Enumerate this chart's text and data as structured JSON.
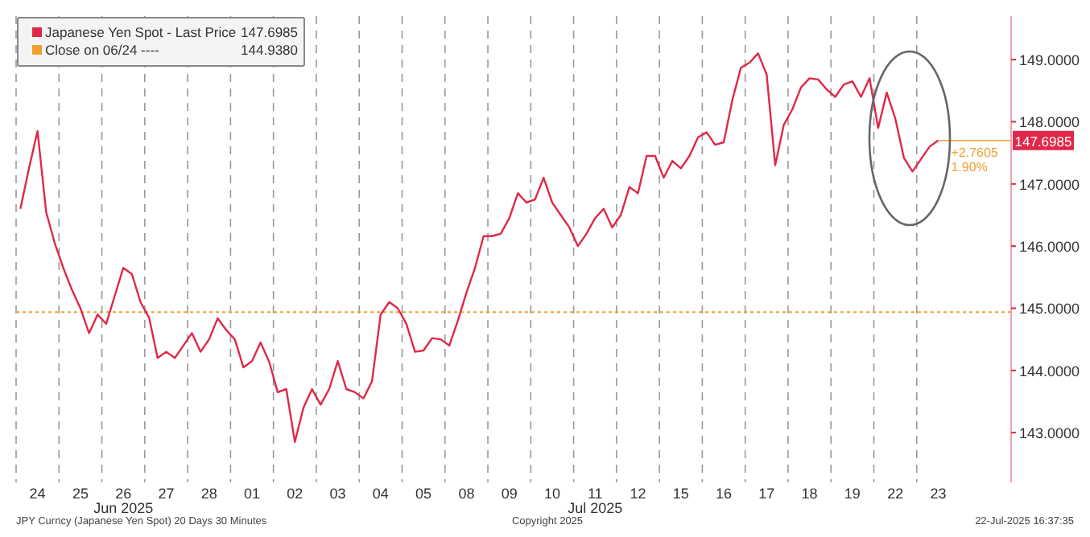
{
  "chart_data": {
    "type": "line",
    "categories": [
      null,
      null,
      "24",
      null,
      null,
      null,
      null,
      "25",
      null,
      null,
      null,
      null,
      "26",
      null,
      null,
      null,
      null,
      "27",
      null,
      null,
      null,
      null,
      "28",
      null,
      null,
      null,
      null,
      "01",
      null,
      null,
      null,
      null,
      "02",
      null,
      null,
      null,
      null,
      "03",
      null,
      null,
      null,
      null,
      "04",
      null,
      null,
      null,
      null,
      "05",
      null,
      null,
      null,
      null,
      "08",
      null,
      null,
      null,
      null,
      "09",
      null,
      null,
      null,
      null,
      "10",
      null,
      null,
      null,
      null,
      "11",
      null,
      null,
      null,
      null,
      "12",
      null,
      null,
      null,
      null,
      "15",
      null,
      null,
      null,
      null,
      "16",
      null,
      null,
      null,
      null,
      "17",
      null,
      null,
      null,
      null,
      "18",
      null,
      null,
      null,
      null,
      "19",
      null,
      null,
      null,
      null,
      "22",
      null,
      null,
      null,
      null,
      "23",
      null,
      null,
      null,
      null,
      null,
      null,
      null,
      null
    ],
    "series": [
      {
        "name": "Japanese Yen Spot - Last Price",
        "color": "#e0284a",
        "values": [
          146.6,
          147.25,
          147.85,
          146.55,
          146.05,
          145.65,
          145.3,
          145.0,
          144.6,
          144.9,
          144.75,
          145.2,
          145.65,
          145.55,
          145.1,
          144.85,
          144.2,
          144.3,
          144.2,
          144.4,
          144.6,
          144.3,
          144.5,
          144.84,
          144.65,
          144.5,
          144.05,
          144.15,
          144.45,
          144.14,
          143.65,
          143.7,
          142.85,
          143.4,
          143.7,
          143.45,
          143.7,
          144.15,
          143.7,
          143.65,
          143.55,
          143.83,
          144.9,
          145.1,
          145.0,
          144.75,
          144.3,
          144.32,
          144.52,
          144.5,
          144.4,
          144.8,
          145.25,
          145.65,
          146.16,
          146.16,
          146.2,
          146.45,
          146.85,
          146.7,
          146.75,
          147.1,
          146.7,
          146.5,
          146.3,
          146.0,
          146.2,
          146.45,
          146.6,
          146.3,
          146.5,
          146.95,
          146.85,
          147.45,
          147.45,
          147.1,
          147.37,
          147.25,
          147.45,
          147.75,
          147.83,
          147.63,
          147.67,
          148.35,
          148.87,
          148.95,
          149.1,
          148.76,
          147.3,
          147.95,
          148.2,
          148.55,
          148.7,
          148.68,
          148.52,
          148.4,
          148.6,
          148.65,
          148.4,
          148.7,
          147.9,
          148.47,
          148.05,
          147.42,
          147.2,
          147.4,
          147.6,
          147.7,
          null,
          null,
          null,
          null,
          null,
          null,
          null,
          null
        ]
      }
    ],
    "ylim": [
      142.2,
      149.7
    ],
    "yticks": [
      {
        "value": 143,
        "label": "143.0000"
      },
      {
        "value": 144,
        "label": "144.0000"
      },
      {
        "value": 145,
        "label": "145.0000"
      },
      {
        "value": 146,
        "label": "146.0000"
      },
      {
        "value": 147,
        "label": "147.0000"
      },
      {
        "value": 148,
        "label": "148.0000"
      },
      {
        "value": 149,
        "label": "149.0000"
      }
    ],
    "grid": "x",
    "legend": "top left",
    "marker": "none",
    "line_style": "solid",
    "ref_lines": [
      {
        "axis": "y",
        "value": 144.938,
        "label": "Close on 06/24 ----",
        "color": "#f0a030",
        "line_style": "dotted"
      }
    ],
    "annotations": [
      {
        "text": "147.6985",
        "x": "23",
        "y": 147.6985
      },
      "144.9380",
      {
        "text": "+2.7605",
        "x": "23",
        "y": 147.6985
      },
      {
        "text": "1.90%",
        "x": "23",
        "y": 147.6985
      },
      "Jun 2025",
      "Jul 2025",
      "JPY Curncy (Japanese Yen Spot) 20 Days 30 Minutes",
      "Copyright 2025",
      "22-Jul-2025 16:37:35"
    ]
  }
}
